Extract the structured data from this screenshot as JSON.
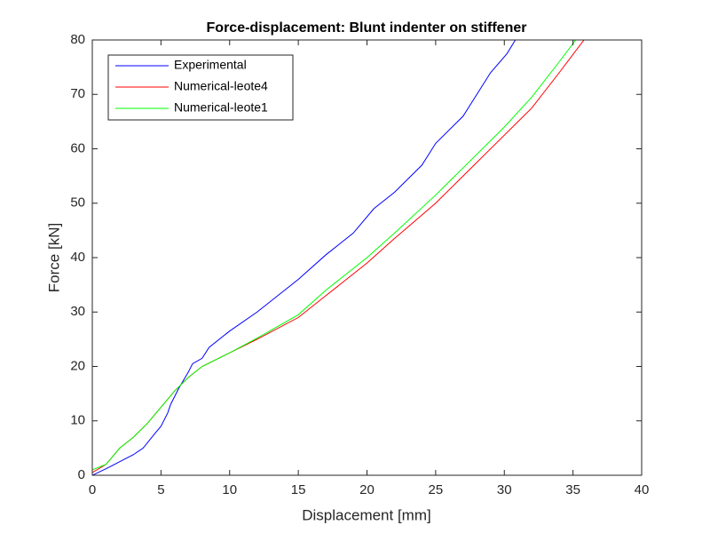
{
  "chart_data": {
    "type": "line",
    "title": "Force-displacement: Blunt indenter on stiffener",
    "x_label": "Displacement [mm]",
    "y_label": "Force [kN]",
    "xlim": [
      0,
      40
    ],
    "xticks": [
      0,
      5,
      10,
      15,
      20,
      25,
      30,
      35,
      40
    ],
    "ylim": [
      0,
      80
    ],
    "yticks": [
      0,
      10,
      20,
      30,
      40,
      50,
      60,
      70,
      80
    ],
    "legend": "top-left",
    "series": [
      {
        "name": "Experimental",
        "color": "#0000ff",
        "x": [
          0,
          1,
          2,
          3,
          3.7,
          4.5,
          5,
          5.5,
          5.7,
          6.3,
          7,
          7.3,
          8,
          8.5,
          10,
          12,
          15,
          17,
          19,
          20.5,
          22,
          24,
          25,
          27,
          28,
          29,
          30.2,
          30.8
        ],
        "values": [
          0,
          1.2,
          2.5,
          3.8,
          5,
          7.5,
          9,
          11.5,
          13,
          16,
          19,
          20.5,
          21.5,
          23.5,
          26.5,
          30,
          36,
          40.5,
          44.5,
          49,
          52,
          57,
          61,
          66,
          70,
          74,
          77.5,
          80
        ]
      },
      {
        "name": "Numerical-leote4",
        "color": "#ff0000",
        "x": [
          0,
          1,
          2,
          3,
          4,
          5,
          6,
          7,
          8,
          10,
          12,
          15,
          17,
          20,
          22,
          25,
          27,
          30,
          32,
          34,
          35.8
        ],
        "values": [
          0.5,
          2,
          5,
          7,
          9.5,
          12.5,
          15.5,
          18,
          20,
          22.5,
          25,
          29,
          33,
          39,
          43.5,
          50,
          55,
          62.5,
          67.5,
          74,
          80
        ]
      },
      {
        "name": "Numerical-leote1",
        "color": "#00ff00",
        "x": [
          0,
          1,
          2,
          3,
          4,
          5,
          6,
          7,
          8,
          10,
          12,
          15,
          17,
          20,
          22,
          25,
          27,
          30,
          32,
          34,
          35.2
        ],
        "values": [
          1,
          2,
          5,
          7,
          9.5,
          12.5,
          15.5,
          18,
          20,
          22.5,
          25.2,
          29.5,
          34,
          40,
          44.5,
          51.5,
          56.5,
          64,
          69.5,
          76,
          80
        ]
      }
    ]
  }
}
